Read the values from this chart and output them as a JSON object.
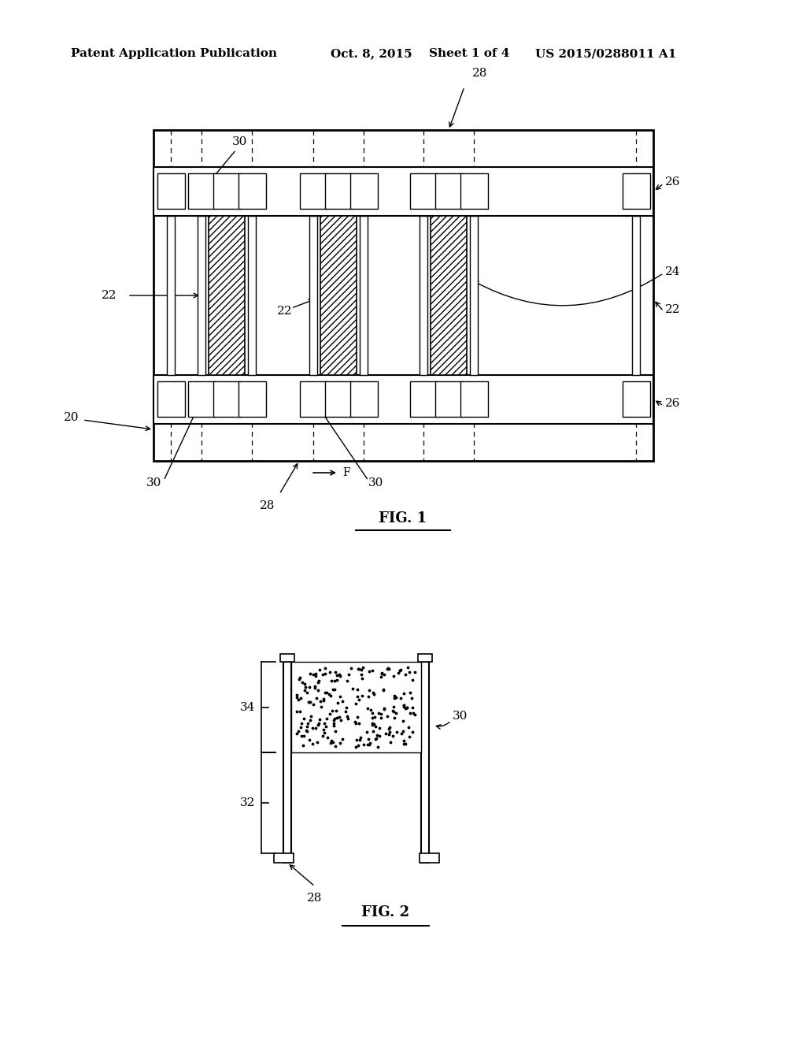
{
  "bg_color": "#ffffff",
  "header_text": "Patent Application Publication",
  "header_date": "Oct. 8, 2015",
  "header_sheet": "Sheet 1 of 4",
  "header_patent": "US 2015/0288011 A1",
  "fig1_label": "FIG. 1",
  "fig2_label": "FIG. 2",
  "label_fontsize": 11,
  "header_fontsize": 11
}
